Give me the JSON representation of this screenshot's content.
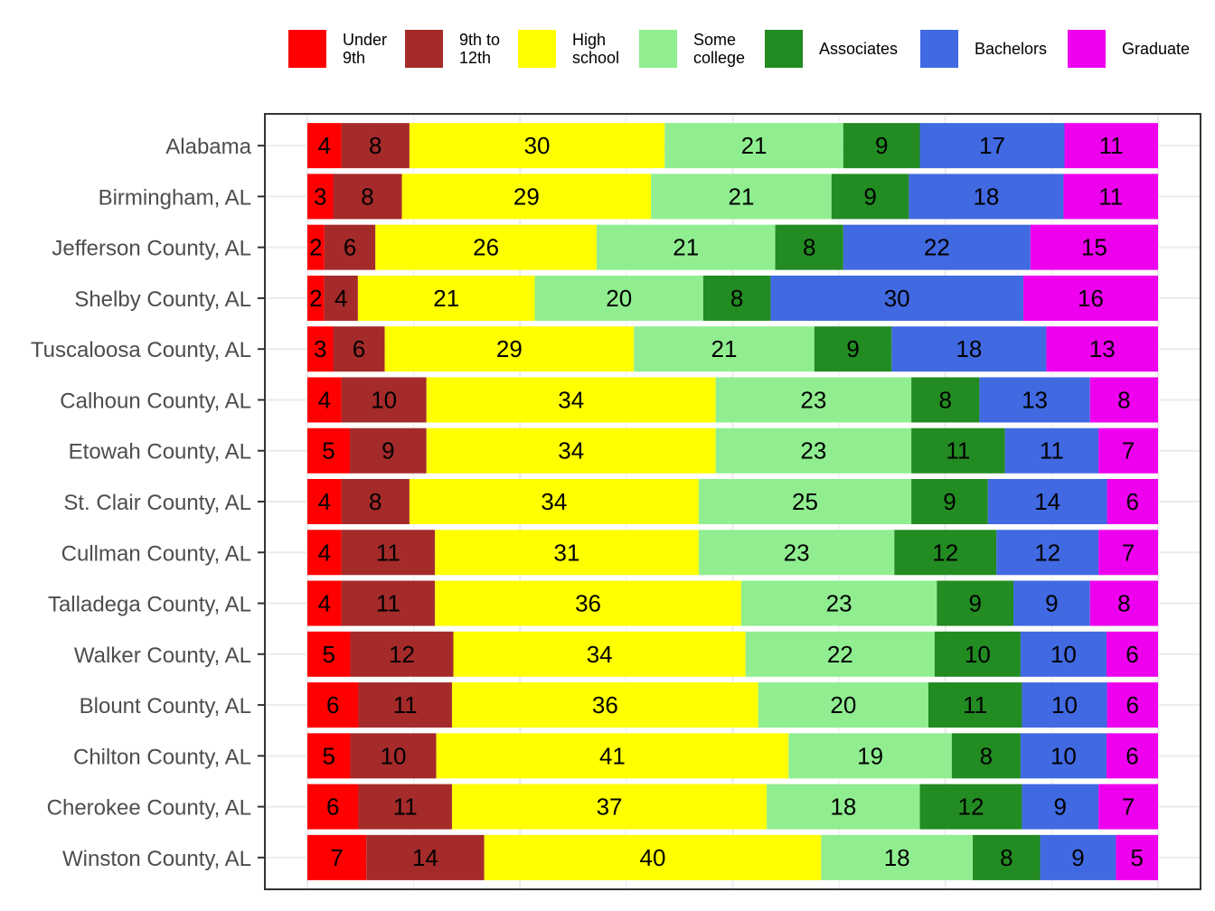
{
  "chart_data": {
    "type": "bar",
    "orientation": "horizontal",
    "stacked": "percent",
    "legend_position": "top",
    "grid": true,
    "xlim": [
      0,
      100
    ],
    "categories": [
      "Alabama",
      "Birmingham, AL",
      "Jefferson County, AL",
      "Shelby County, AL",
      "Tuscaloosa County, AL",
      "Calhoun County, AL",
      "Etowah County, AL",
      "St. Clair County, AL",
      "Cullman County, AL",
      "Talladega County, AL",
      "Walker County, AL",
      "Blount County, AL",
      "Chilton County, AL",
      "Cherokee County, AL",
      "Winston County, AL"
    ],
    "series": [
      {
        "name": "Under\n9th",
        "color": "#FF0000",
        "values": [
          4,
          3,
          2,
          2,
          3,
          4,
          5,
          4,
          4,
          4,
          5,
          6,
          5,
          6,
          7
        ]
      },
      {
        "name": "9th to\n12th",
        "color": "#A52A2A",
        "values": [
          8,
          8,
          6,
          4,
          6,
          10,
          9,
          8,
          11,
          11,
          12,
          11,
          10,
          11,
          14
        ]
      },
      {
        "name": "High\nschool",
        "color": "#FFFF00",
        "values": [
          30,
          29,
          26,
          21,
          29,
          34,
          34,
          34,
          31,
          36,
          34,
          36,
          41,
          37,
          40
        ]
      },
      {
        "name": "Some\ncollege",
        "color": "#90EE90",
        "values": [
          21,
          21,
          21,
          20,
          21,
          23,
          23,
          25,
          23,
          23,
          22,
          20,
          19,
          18,
          18
        ]
      },
      {
        "name": "Associates",
        "color": "#228B22",
        "values": [
          9,
          9,
          8,
          8,
          9,
          8,
          11,
          9,
          12,
          9,
          10,
          11,
          8,
          12,
          8
        ]
      },
      {
        "name": "Bachelors",
        "color": "#4169E1",
        "values": [
          17,
          18,
          22,
          30,
          18,
          13,
          11,
          14,
          12,
          9,
          10,
          10,
          10,
          9,
          9
        ]
      },
      {
        "name": "Graduate",
        "color": "#EE00EE",
        "values": [
          11,
          11,
          15,
          16,
          13,
          8,
          7,
          6,
          7,
          8,
          6,
          6,
          6,
          7,
          5
        ]
      }
    ]
  }
}
